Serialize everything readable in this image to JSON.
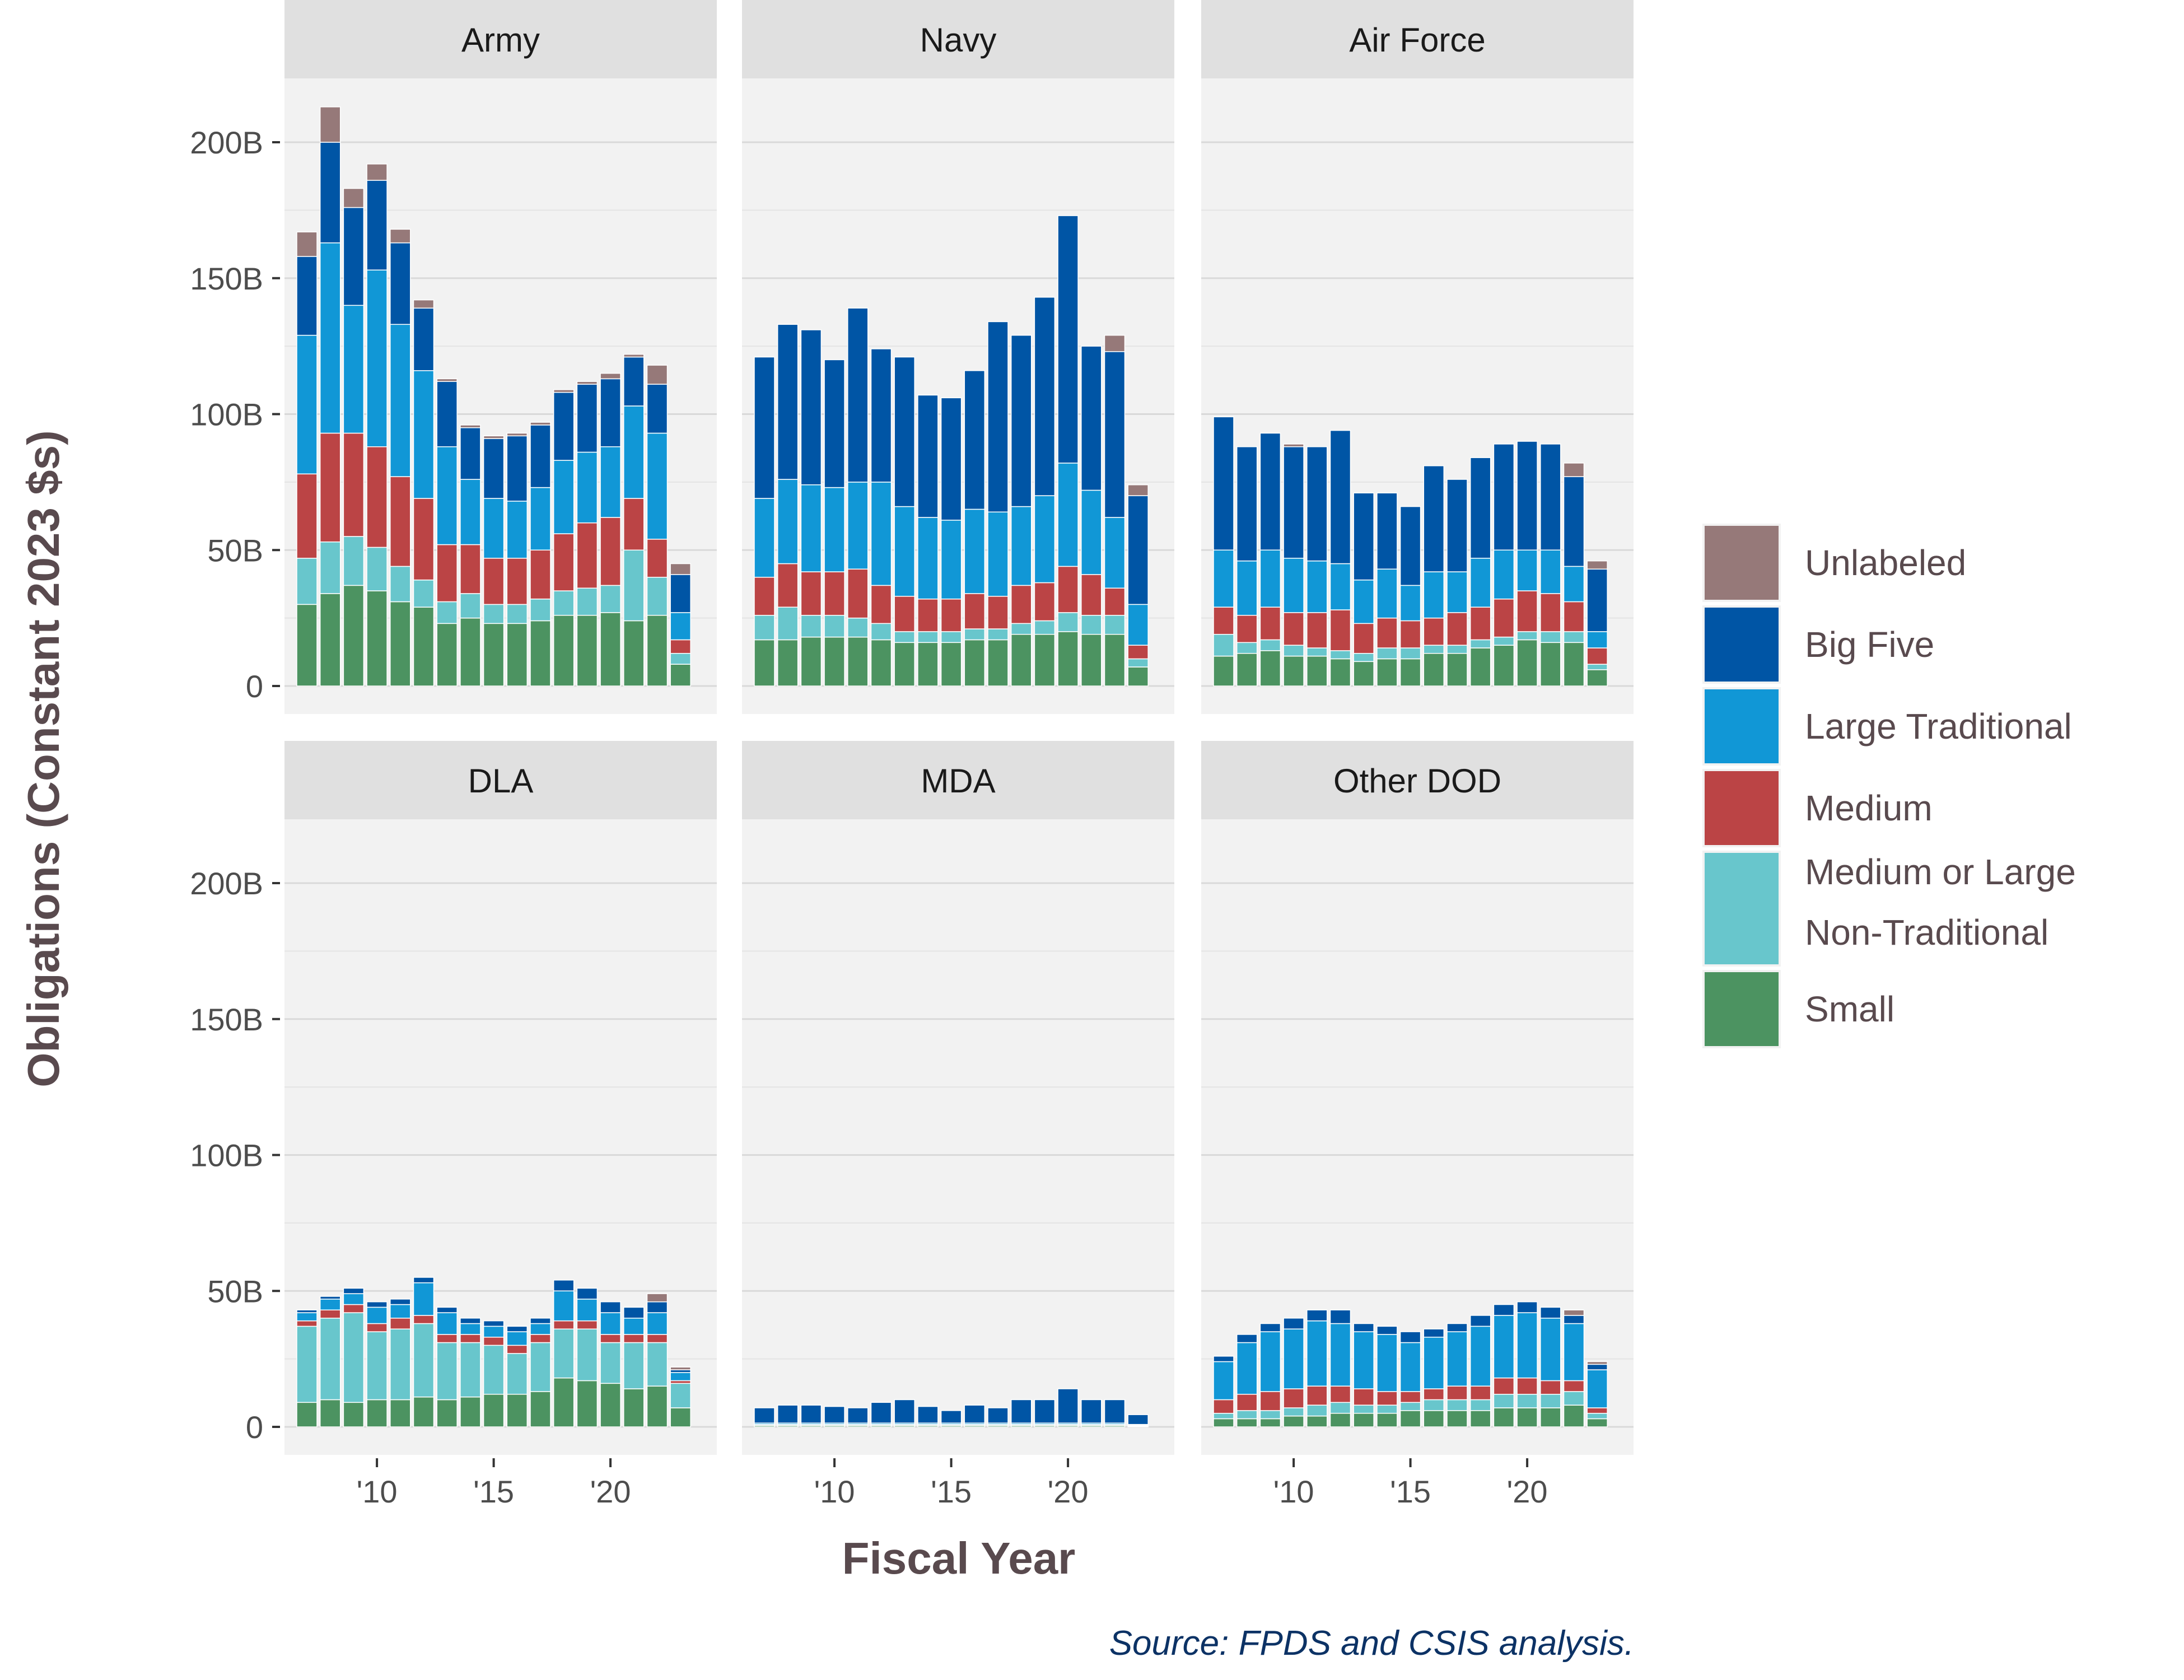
{
  "chart_data": {
    "type": "bar",
    "stacked": true,
    "faceted": true,
    "title": "",
    "xlabel": "Fiscal Year",
    "ylabel": "Obligations (Constant 2023 $s)",
    "source": "Source: FPDS and CSIS analysis.",
    "years": [
      2007,
      2008,
      2009,
      2010,
      2011,
      2012,
      2013,
      2014,
      2015,
      2016,
      2017,
      2018,
      2019,
      2020,
      2021,
      2022,
      2023
    ],
    "ylim": [
      0,
      220
    ],
    "yunit": "billions of constant 2023 dollars",
    "yticks": [
      0,
      50,
      100,
      150,
      200
    ],
    "ytick_labels": [
      "0",
      "50B",
      "100B",
      "150B",
      "200B"
    ],
    "xticks": [
      2010,
      2015,
      2020
    ],
    "xtick_labels": [
      "'10",
      "'15",
      "'20"
    ],
    "grid": true,
    "legend_position": "right",
    "series_order": [
      "Small",
      "Medium or Large Non-Traditional",
      "Medium",
      "Large Traditional",
      "Big Five",
      "Unlabeled"
    ],
    "legend": [
      {
        "key": "Unlabeled",
        "lines": [
          "Unlabeled"
        ],
        "color": "#967979"
      },
      {
        "key": "Big Five",
        "lines": [
          "Big Five"
        ],
        "color": "#0055a5"
      },
      {
        "key": "Large Traditional",
        "lines": [
          "Large Traditional"
        ],
        "color": "#1197d6"
      },
      {
        "key": "Medium",
        "lines": [
          "Medium"
        ],
        "color": "#bb4445"
      },
      {
        "key": "Medium or Large Non-Traditional",
        "lines": [
          "Medium or Large",
          "Non-Traditional"
        ],
        "color": "#68c6cc"
      },
      {
        "key": "Small",
        "lines": [
          "Small"
        ],
        "color": "#4c9361"
      }
    ],
    "facets": [
      {
        "name": "Army",
        "series": {
          "Small": [
            30,
            34,
            37,
            35,
            31,
            29,
            23,
            25,
            23,
            23,
            24,
            26,
            26,
            27,
            24,
            26,
            8
          ],
          "Medium or Large Non-Traditional": [
            17,
            19,
            18,
            16,
            13,
            10,
            8,
            9,
            7,
            7,
            8,
            9,
            10,
            10,
            26,
            14,
            4
          ],
          "Medium": [
            31,
            40,
            38,
            37,
            33,
            30,
            21,
            18,
            17,
            17,
            18,
            21,
            24,
            25,
            19,
            14,
            5
          ],
          "Large Traditional": [
            51,
            70,
            47,
            65,
            56,
            47,
            36,
            24,
            22,
            21,
            23,
            27,
            26,
            26,
            34,
            39,
            10
          ],
          "Big Five": [
            29,
            37,
            36,
            33,
            30,
            23,
            24,
            19,
            22,
            24,
            23,
            25,
            25,
            25,
            18,
            18,
            14
          ],
          "Unlabeled": [
            9,
            13,
            7,
            6,
            5,
            3,
            1,
            1,
            1,
            1,
            1,
            1,
            1,
            2,
            1,
            7,
            4
          ]
        }
      },
      {
        "name": "Navy",
        "series": {
          "Small": [
            17,
            17,
            18,
            18,
            18,
            17,
            16,
            16,
            16,
            17,
            17,
            19,
            19,
            20,
            19,
            19,
            7
          ],
          "Medium or Large Non-Traditional": [
            9,
            12,
            8,
            8,
            7,
            6,
            4,
            4,
            4,
            4,
            4,
            4,
            5,
            7,
            7,
            7,
            3
          ],
          "Medium": [
            14,
            16,
            16,
            16,
            18,
            14,
            13,
            12,
            12,
            13,
            12,
            14,
            14,
            17,
            15,
            10,
            5
          ],
          "Large Traditional": [
            29,
            31,
            32,
            31,
            32,
            38,
            33,
            30,
            29,
            31,
            31,
            29,
            32,
            38,
            31,
            26,
            15
          ],
          "Big Five": [
            52,
            57,
            57,
            47,
            64,
            49,
            55,
            45,
            45,
            51,
            70,
            63,
            73,
            91,
            53,
            61,
            40
          ],
          "Unlabeled": [
            0,
            0,
            0,
            0,
            0,
            0,
            0,
            0,
            0,
            0,
            0,
            0,
            0,
            0,
            0,
            6,
            4
          ]
        }
      },
      {
        "name": "Air Force",
        "series": {
          "Small": [
            11,
            12,
            13,
            11,
            11,
            10,
            9,
            10,
            10,
            12,
            12,
            14,
            15,
            17,
            16,
            16,
            6
          ],
          "Medium or Large Non-Traditional": [
            8,
            4,
            4,
            4,
            3,
            3,
            3,
            4,
            4,
            3,
            3,
            3,
            3,
            3,
            4,
            4,
            2
          ],
          "Medium": [
            10,
            10,
            12,
            12,
            13,
            15,
            11,
            11,
            10,
            10,
            12,
            12,
            14,
            15,
            14,
            11,
            6
          ],
          "Large Traditional": [
            21,
            20,
            21,
            20,
            19,
            17,
            16,
            18,
            13,
            17,
            15,
            18,
            18,
            15,
            16,
            13,
            6
          ],
          "Big Five": [
            49,
            42,
            43,
            41,
            42,
            49,
            32,
            28,
            29,
            39,
            34,
            37,
            39,
            40,
            39,
            33,
            23
          ],
          "Unlabeled": [
            0,
            0,
            0,
            1,
            0,
            0,
            0,
            0,
            0,
            0,
            0,
            0,
            0,
            0,
            0,
            5,
            3
          ]
        }
      },
      {
        "name": "DLA",
        "series": {
          "Small": [
            9,
            10,
            9,
            10,
            10,
            11,
            10,
            11,
            12,
            12,
            13,
            18,
            17,
            16,
            14,
            15,
            7
          ],
          "Medium or Large Non-Traditional": [
            28,
            30,
            33,
            25,
            26,
            27,
            21,
            20,
            18,
            15,
            18,
            18,
            19,
            15,
            17,
            16,
            9
          ],
          "Medium": [
            2,
            3,
            3,
            3,
            4,
            3,
            3,
            3,
            3,
            3,
            3,
            3,
            3,
            3,
            3,
            3,
            1
          ],
          "Large Traditional": [
            3,
            4,
            4,
            6,
            5,
            12,
            8,
            4,
            4,
            5,
            4,
            11,
            8,
            8,
            6,
            8,
            3
          ],
          "Big Five": [
            1,
            1,
            2,
            2,
            2,
            2,
            2,
            2,
            2,
            2,
            2,
            4,
            4,
            4,
            4,
            4,
            1
          ],
          "Unlabeled": [
            0,
            0,
            0,
            0,
            0,
            0,
            0,
            0,
            0,
            0,
            0,
            0,
            0,
            0,
            0,
            3,
            1
          ]
        }
      },
      {
        "name": "MDA",
        "series": {
          "Small": [
            0.5,
            0.5,
            0.5,
            0.5,
            0.5,
            0.5,
            0.5,
            0.5,
            0.5,
            0.5,
            0.5,
            0.5,
            0.5,
            0.5,
            0.5,
            0.5,
            0.3
          ],
          "Medium or Large Non-Traditional": [
            0.1,
            0.1,
            0.1,
            0.1,
            0.1,
            0.1,
            0.1,
            0.1,
            0.1,
            0.1,
            0.1,
            0.1,
            0.1,
            0.1,
            0.1,
            0.1,
            0.1
          ],
          "Medium": [
            0.3,
            0.3,
            0.3,
            0.3,
            0.3,
            0.3,
            0.3,
            0.3,
            0.3,
            0.3,
            0.3,
            0.3,
            0.3,
            0.3,
            0.3,
            0.3,
            0.2
          ],
          "Large Traditional": [
            0.5,
            0.5,
            0.5,
            0.5,
            0.5,
            0.5,
            0.5,
            0.5,
            0.5,
            0.5,
            0.5,
            0.5,
            0.5,
            0.5,
            0.5,
            0.5,
            0.3
          ],
          "Big Five": [
            5.6,
            6.6,
            6.6,
            6.1,
            5.6,
            7.6,
            8.6,
            6.1,
            4.6,
            6.6,
            5.6,
            8.6,
            8.6,
            12.6,
            8.6,
            8.6,
            3.6
          ],
          "Unlabeled": [
            0,
            0,
            0,
            0,
            0,
            0,
            0,
            0,
            0,
            0,
            0,
            0,
            0,
            0,
            0,
            0,
            0
          ]
        }
      },
      {
        "name": "Other DOD",
        "series": {
          "Small": [
            3,
            3,
            3,
            4,
            4,
            5,
            5,
            5,
            6,
            6,
            6,
            6,
            7,
            7,
            7,
            8,
            3
          ],
          "Medium or Large Non-Traditional": [
            2,
            3,
            3,
            3,
            4,
            4,
            3,
            3,
            3,
            4,
            4,
            4,
            5,
            5,
            5,
            5,
            2
          ],
          "Medium": [
            5,
            6,
            7,
            7,
            7,
            6,
            6,
            5,
            4,
            4,
            5,
            5,
            6,
            6,
            5,
            4,
            2
          ],
          "Large Traditional": [
            14,
            19,
            22,
            22,
            24,
            23,
            21,
            21,
            18,
            19,
            20,
            22,
            23,
            24,
            23,
            21,
            14
          ],
          "Big Five": [
            2,
            3,
            3,
            4,
            4,
            5,
            3,
            3,
            4,
            3,
            3,
            4,
            4,
            4,
            4,
            3,
            2
          ],
          "Unlabeled": [
            0,
            0,
            0,
            0,
            0,
            0,
            0,
            0,
            0,
            0,
            0,
            0,
            0,
            0,
            0,
            2,
            1
          ]
        }
      }
    ]
  }
}
